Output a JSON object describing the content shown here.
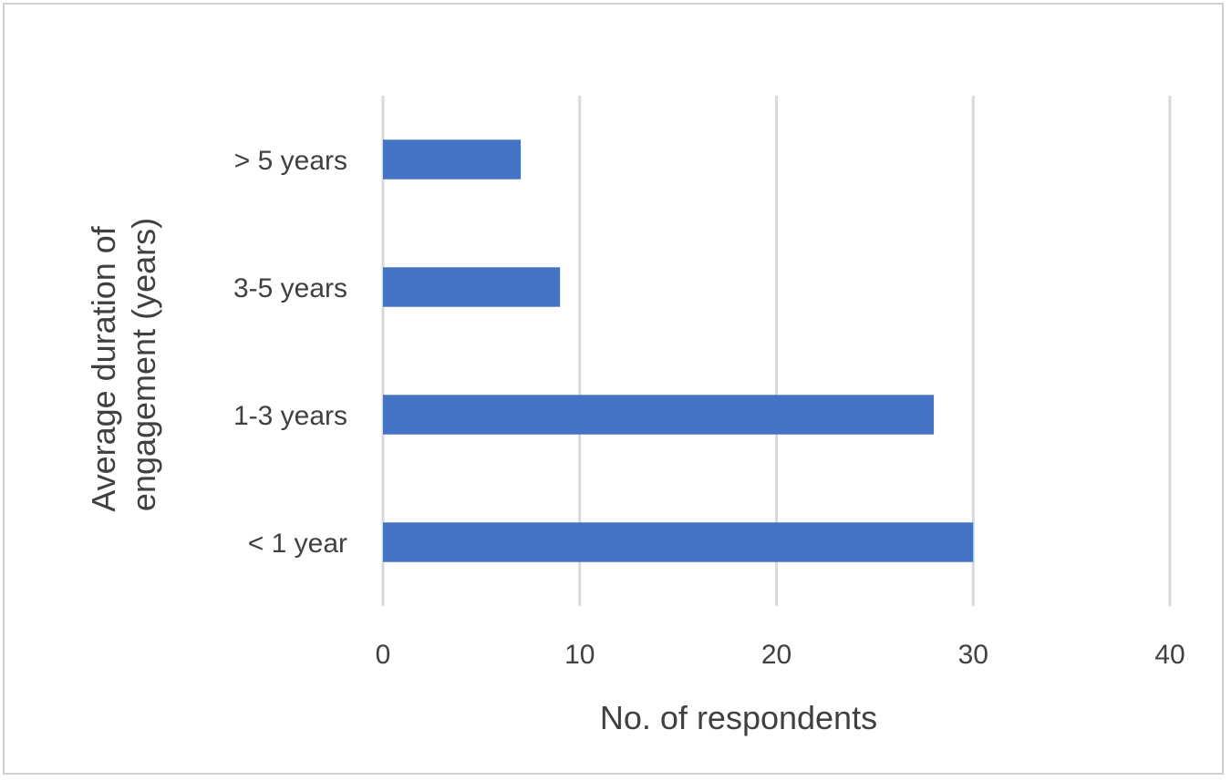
{
  "chart_data": {
    "type": "bar",
    "orientation": "horizontal",
    "categories": [
      "< 1 year",
      "1-3 years",
      "3-5 years",
      "> 5 years"
    ],
    "values": [
      30,
      28,
      9,
      7
    ],
    "xlabel": "No. of  respondents",
    "ylabel_lines": [
      "Average duration of",
      "engagement (years)"
    ],
    "xlim": [
      0,
      40
    ],
    "xticks": [
      0,
      10,
      20,
      30,
      40
    ],
    "grid": "vertical",
    "bar_color": "#4472C4",
    "grid_color": "#d9d9d9"
  }
}
